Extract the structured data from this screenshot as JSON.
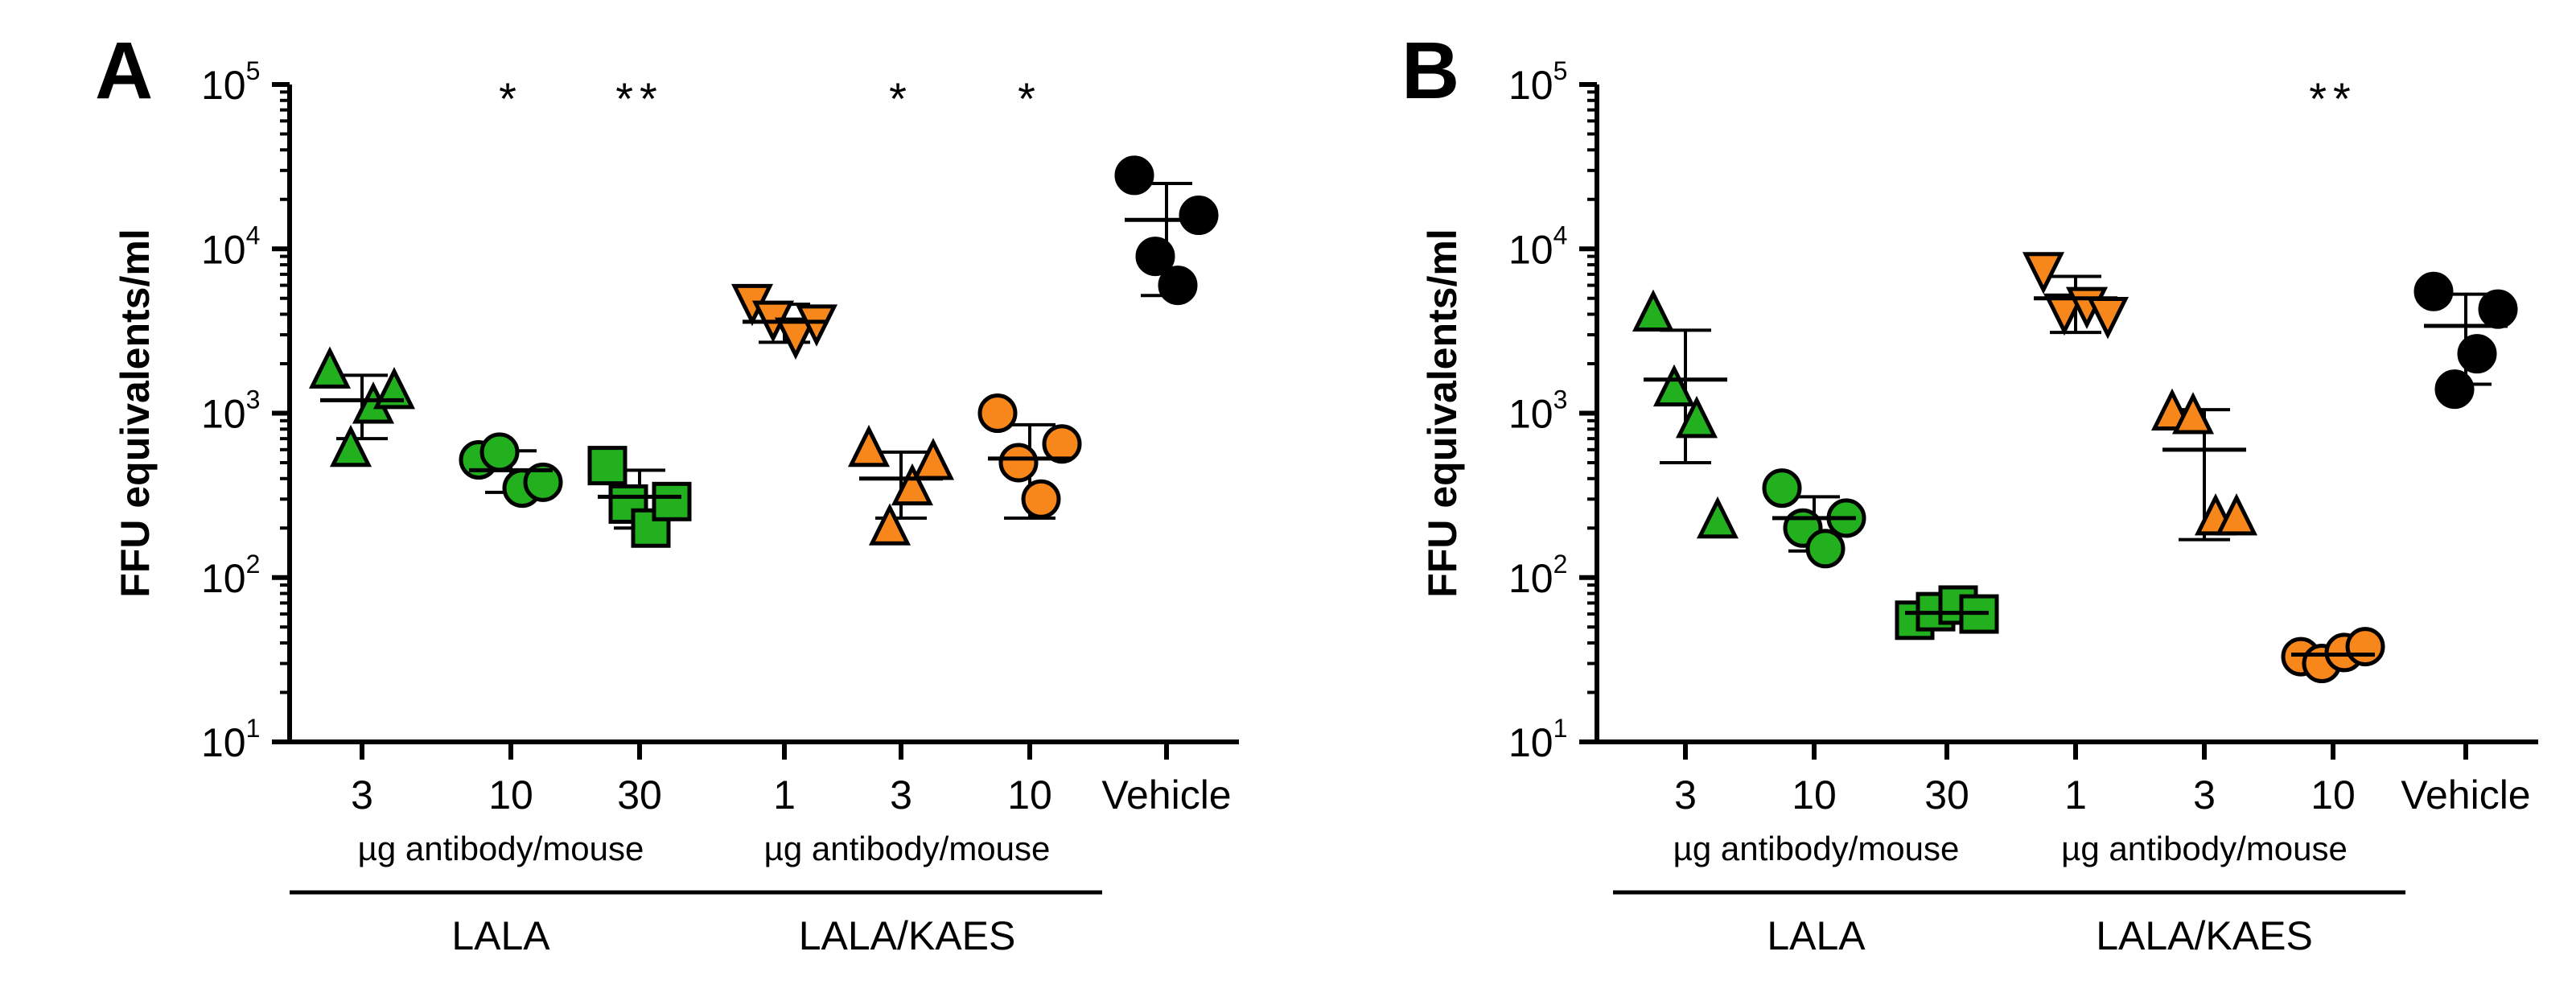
{
  "colors": {
    "green": "#22b01e",
    "orange": "#f7861b",
    "black": "#000000"
  },
  "chart_data": [
    {
      "panel": "A",
      "type": "scatter",
      "yscale": "log",
      "ylabel": "FFU equivalents/ml",
      "ylim": [
        10,
        100000
      ],
      "yticks": [
        {
          "v": 10,
          "base": "10",
          "exp": "1"
        },
        {
          "v": 100,
          "base": "10",
          "exp": "2"
        },
        {
          "v": 1000,
          "base": "10",
          "exp": "3"
        },
        {
          "v": 10000,
          "base": "10",
          "exp": "4"
        },
        {
          "v": 100000,
          "base": "10",
          "exp": "5"
        }
      ],
      "categories": [
        "3",
        "10",
        "30",
        "1",
        "3",
        "10",
        "Vehicle"
      ],
      "groups": [
        {
          "label": "µg antibody/mouse",
          "name": "LALA",
          "from": 0,
          "to": 2
        },
        {
          "label": "µg antibody/mouse",
          "name": "LALA/KAES",
          "from": 3,
          "to": 5
        }
      ],
      "series": [
        {
          "x": 0,
          "marker": "triangle-up",
          "color": "green",
          "values": [
            1800,
            600,
            1100,
            1350
          ],
          "mean": 1200,
          "sd": [
            700,
            1700
          ],
          "sig": ""
        },
        {
          "x": 1,
          "marker": "circle",
          "color": "green",
          "values": [
            520,
            580,
            350,
            380
          ],
          "mean": 450,
          "sd": [
            330,
            590
          ],
          "sig": "*"
        },
        {
          "x": 2,
          "marker": "square",
          "color": "green",
          "values": [
            480,
            280,
            200,
            290
          ],
          "mean": 310,
          "sd": [
            200,
            450
          ],
          "sig": "**"
        },
        {
          "x": 3,
          "marker": "triangle-down",
          "color": "orange",
          "values": [
            4800,
            3800,
            3000,
            3600
          ],
          "mean": 3600,
          "sd": [
            2700,
            4600
          ],
          "sig": ""
        },
        {
          "x": 4,
          "marker": "triangle-up",
          "color": "orange",
          "values": [
            600,
            200,
            350,
            500
          ],
          "mean": 400,
          "sd": [
            230,
            580
          ],
          "sig": "*"
        },
        {
          "x": 5,
          "marker": "circle",
          "color": "orange",
          "values": [
            1000,
            500,
            300,
            650
          ],
          "mean": 530,
          "sd": [
            230,
            850
          ],
          "sig": "*"
        },
        {
          "x": 6,
          "marker": "circle",
          "color": "black",
          "values": [
            28000,
            9000,
            6000,
            16000
          ],
          "mean": 15000,
          "sd": [
            5200,
            25000
          ],
          "sig": ""
        }
      ]
    },
    {
      "panel": "B",
      "type": "scatter",
      "yscale": "log",
      "ylabel": "FFU equivalents/ml",
      "ylim": [
        10,
        100000
      ],
      "yticks": [
        {
          "v": 10,
          "base": "10",
          "exp": "1"
        },
        {
          "v": 100,
          "base": "10",
          "exp": "2"
        },
        {
          "v": 1000,
          "base": "10",
          "exp": "3"
        },
        {
          "v": 10000,
          "base": "10",
          "exp": "4"
        },
        {
          "v": 100000,
          "base": "10",
          "exp": "5"
        }
      ],
      "categories": [
        "3",
        "10",
        "30",
        "1",
        "3",
        "10",
        "Vehicle"
      ],
      "groups": [
        {
          "label": "µg antibody/mouse",
          "name": "LALA",
          "from": 0,
          "to": 2
        },
        {
          "label": "µg antibody/mouse",
          "name": "LALA/KAES",
          "from": 3,
          "to": 5
        }
      ],
      "series": [
        {
          "x": 0,
          "marker": "triangle-up",
          "color": "green",
          "values": [
            4000,
            1400,
            900,
            220
          ],
          "mean": 1600,
          "sd": [
            500,
            3200
          ],
          "sig": ""
        },
        {
          "x": 1,
          "marker": "circle",
          "color": "green",
          "values": [
            350,
            200,
            150,
            230
          ],
          "mean": 230,
          "sd": [
            145,
            310
          ],
          "sig": ""
        },
        {
          "x": 2,
          "marker": "square",
          "color": "green",
          "values": [
            55,
            62,
            68,
            60
          ],
          "mean": 61,
          "sd": [
            56,
            66
          ],
          "sig": ""
        },
        {
          "x": 3,
          "marker": "triangle-down",
          "color": "orange",
          "values": [
            7500,
            4200,
            4600,
            4000
          ],
          "mean": 5000,
          "sd": [
            3100,
            6800
          ],
          "sig": ""
        },
        {
          "x": 4,
          "marker": "triangle-up",
          "color": "orange",
          "values": [
            1000,
            950,
            230,
            230
          ],
          "mean": 600,
          "sd": [
            170,
            1050
          ],
          "sig": ""
        },
        {
          "x": 5,
          "marker": "circle",
          "color": "orange",
          "values": [
            33,
            30,
            35,
            38
          ],
          "mean": 34,
          "sd": [
            31,
            37
          ],
          "sig": "**"
        },
        {
          "x": 6,
          "marker": "circle",
          "color": "black",
          "values": [
            5500,
            1400,
            2300,
            4300
          ],
          "mean": 3400,
          "sd": [
            1500,
            5300
          ],
          "sig": ""
        }
      ]
    }
  ]
}
